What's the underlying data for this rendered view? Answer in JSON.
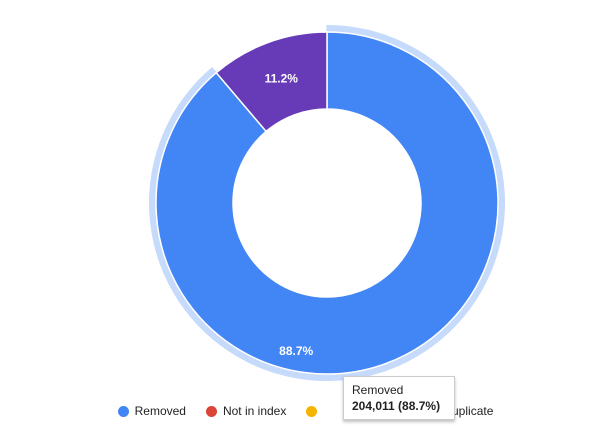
{
  "chart_data": {
    "type": "pie",
    "donut": true,
    "title": "",
    "series": [
      {
        "name": "Removed",
        "value": 204011,
        "percent": 88.7,
        "color": "#4285f4"
      },
      {
        "name": "Not in index",
        "value": 0,
        "percent": 0.0,
        "color": "#db4437"
      },
      {
        "name": "",
        "value": 0,
        "percent": 0.0,
        "color": "#f4b400"
      },
      {
        "name": "Duplicate",
        "value": 25760,
        "percent": 11.2,
        "color": "#673ab7"
      }
    ],
    "slice_labels": [
      "88.7%",
      "11.2%"
    ],
    "highlighted_slice": "Removed",
    "highlight_color": "#c6dafc",
    "legend_position": "bottom"
  },
  "tooltip": {
    "title": "Removed",
    "value": "204,011 (88.7%)"
  },
  "legend": [
    {
      "label": "Removed",
      "color": "#4285f4"
    },
    {
      "label": "Not in index",
      "color": "#db4437"
    },
    {
      "label": "",
      "color": "#f4b400"
    },
    {
      "label": "Duplicate",
      "color": "#673ab7"
    }
  ]
}
